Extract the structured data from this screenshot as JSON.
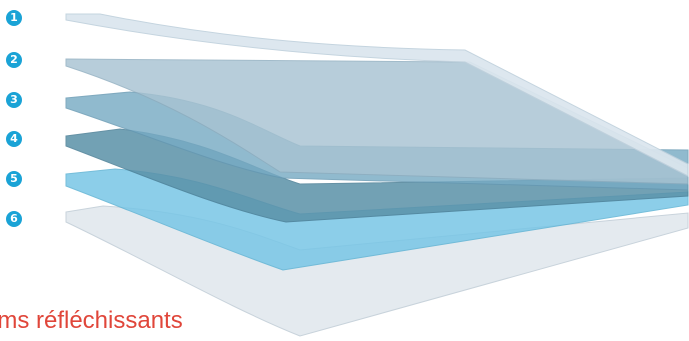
{
  "labels": [
    "1",
    "2",
    "3",
    "4",
    "5",
    "6"
  ],
  "caption": "lms réfléchissants",
  "colors": {
    "badge": "#1aa3d6",
    "caption": "#e0463a",
    "layer1": "#dbe6ee",
    "layer2": "#a9c4d3",
    "layer3": "#7fb1c9",
    "layer4": "#5d93aa",
    "layer5": "#7cc8e6",
    "layer6": "#dfe6ec"
  }
}
